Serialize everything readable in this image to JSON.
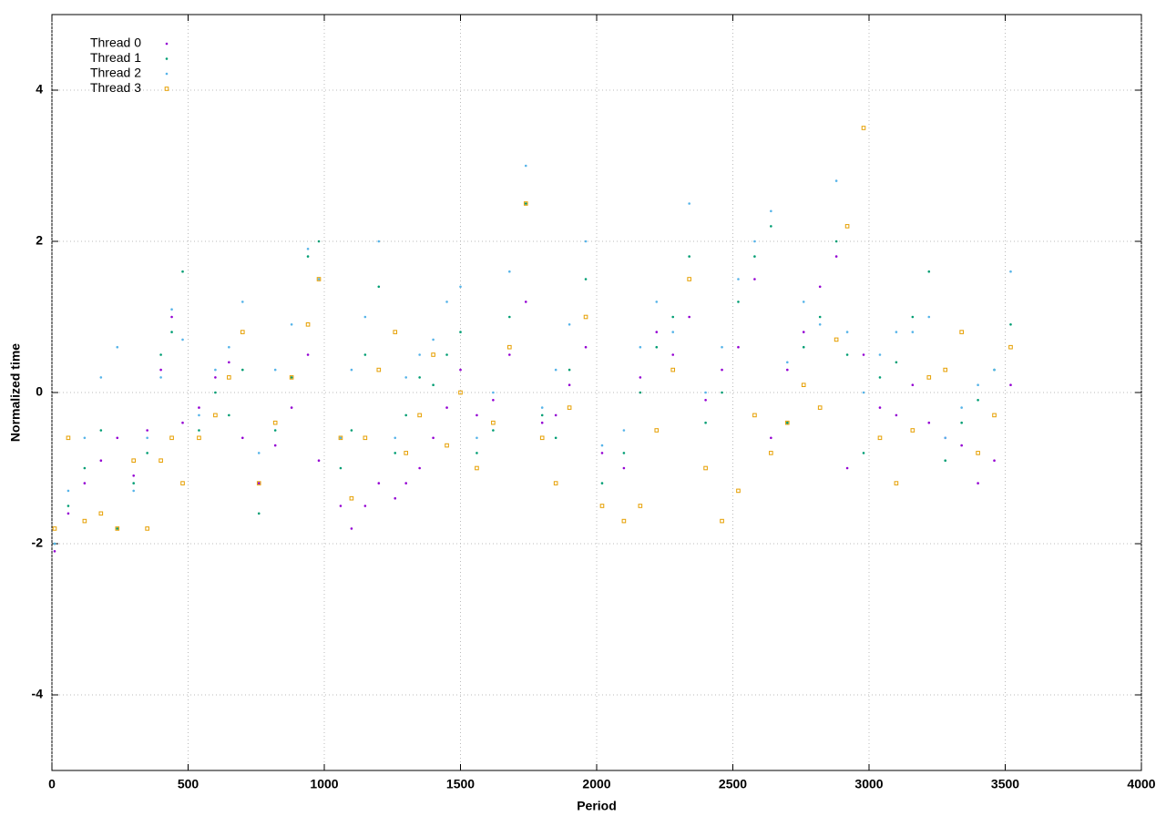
{
  "chart_data": {
    "type": "scatter",
    "xlabel": "Period",
    "ylabel": "Normalized time",
    "xlim": [
      0,
      4000
    ],
    "ylim": [
      -5,
      5
    ],
    "xticks": [
      0,
      500,
      1000,
      1500,
      2000,
      2500,
      3000,
      3500,
      4000
    ],
    "yticks": [
      -4,
      -2,
      0,
      2,
      4
    ],
    "grid": true,
    "legend": "top-left",
    "x": [
      10,
      60,
      120,
      180,
      240,
      300,
      350,
      400,
      440,
      480,
      540,
      600,
      650,
      700,
      760,
      820,
      880,
      940,
      980,
      1060,
      1100,
      1150,
      1200,
      1260,
      1300,
      1350,
      1400,
      1450,
      1500,
      1560,
      1620,
      1680,
      1740,
      1800,
      1850,
      1900,
      1960,
      2020,
      2100,
      2160,
      2220,
      2280,
      2340,
      2400,
      2460,
      2520,
      2580,
      2640,
      2700,
      2760,
      2820,
      2880,
      2920,
      2980,
      3040,
      3100,
      3160,
      3220,
      3280,
      3340,
      3400,
      3460,
      3520
    ],
    "series": [
      {
        "name": "Thread 0",
        "color": "#9400d3",
        "marker": "dot",
        "values": [
          -2.1,
          -1.6,
          -1.2,
          -0.9,
          -0.6,
          -1.1,
          -0.5,
          0.3,
          1.0,
          -0.4,
          -0.2,
          0.2,
          0.4,
          -0.6,
          -1.2,
          -0.7,
          -0.2,
          0.5,
          -0.9,
          -1.5,
          -1.8,
          -1.5,
          -1.2,
          -1.4,
          -1.2,
          -1.0,
          -0.6,
          -0.2,
          0.3,
          -0.3,
          -0.1,
          0.5,
          1.2,
          -0.4,
          -0.3,
          0.1,
          0.6,
          -0.8,
          -1.0,
          0.2,
          0.8,
          0.5,
          1.0,
          -0.1,
          0.3,
          0.6,
          1.5,
          -0.6,
          0.3,
          0.8,
          1.4,
          1.8,
          -1.0,
          0.5,
          -0.2,
          -0.3,
          0.1,
          -0.4,
          -0.6,
          -0.7,
          -1.2,
          -0.9,
          0.1
        ]
      },
      {
        "name": "Thread 1",
        "color": "#009e73",
        "marker": "dot",
        "values": [
          -2.0,
          -1.5,
          -1.0,
          -0.5,
          -1.8,
          -1.2,
          -0.8,
          0.5,
          0.8,
          1.6,
          -0.5,
          0.0,
          -0.3,
          0.3,
          -1.6,
          -0.5,
          0.2,
          1.8,
          2.0,
          -1.0,
          -0.5,
          0.5,
          1.4,
          -0.8,
          -0.3,
          0.2,
          0.1,
          0.5,
          0.8,
          -0.8,
          -0.5,
          1.0,
          2.5,
          -0.3,
          -0.6,
          0.3,
          1.5,
          -1.2,
          -0.8,
          0.0,
          0.6,
          1.0,
          1.8,
          -0.4,
          0.0,
          1.2,
          1.8,
          2.2,
          -0.4,
          0.6,
          1.0,
          2.0,
          0.5,
          -0.8,
          0.2,
          0.4,
          1.0,
          1.6,
          -0.9,
          -0.4,
          -0.1,
          0.3,
          0.9
        ]
      },
      {
        "name": "Thread 2",
        "color": "#56b4e9",
        "marker": "dot",
        "values": [
          -2.0,
          -1.3,
          -0.6,
          0.2,
          0.6,
          -1.3,
          -0.6,
          0.2,
          1.1,
          0.7,
          -0.3,
          0.3,
          0.6,
          1.2,
          -0.8,
          0.3,
          0.9,
          1.9,
          1.5,
          -0.6,
          0.3,
          1.0,
          2.0,
          -0.6,
          0.2,
          0.5,
          0.7,
          1.2,
          1.4,
          -0.6,
          0.0,
          1.6,
          3.0,
          -0.2,
          0.3,
          0.9,
          2.0,
          -0.7,
          -0.5,
          0.6,
          1.2,
          0.8,
          2.5,
          0.0,
          0.6,
          1.5,
          2.0,
          2.4,
          0.4,
          1.2,
          0.9,
          2.8,
          0.8,
          0.0,
          0.5,
          0.8,
          0.8,
          1.0,
          -0.6,
          -0.2,
          0.1,
          0.3,
          1.6
        ]
      },
      {
        "name": "Thread 3",
        "color": "#e69f00",
        "marker": "square",
        "values": [
          -1.8,
          -0.6,
          -1.7,
          -1.6,
          -1.8,
          -0.9,
          -1.8,
          -0.9,
          -0.6,
          -1.2,
          -0.6,
          -0.3,
          0.2,
          0.8,
          -1.2,
          -0.4,
          0.2,
          0.9,
          1.5,
          -0.6,
          -1.4,
          -0.6,
          0.3,
          0.8,
          -0.8,
          -0.3,
          0.5,
          -0.7,
          0.0,
          -1.0,
          -0.4,
          0.6,
          2.5,
          -0.6,
          -1.2,
          -0.2,
          1.0,
          -1.5,
          -1.7,
          -1.5,
          -0.5,
          0.3,
          1.5,
          -1.0,
          -1.7,
          -1.3,
          -0.3,
          -0.8,
          -0.4,
          0.1,
          -0.2,
          0.7,
          2.2,
          3.5,
          -0.6,
          -1.2,
          -0.5,
          0.2,
          0.3,
          0.8,
          -0.8,
          -0.3,
          0.6
        ]
      }
    ]
  }
}
